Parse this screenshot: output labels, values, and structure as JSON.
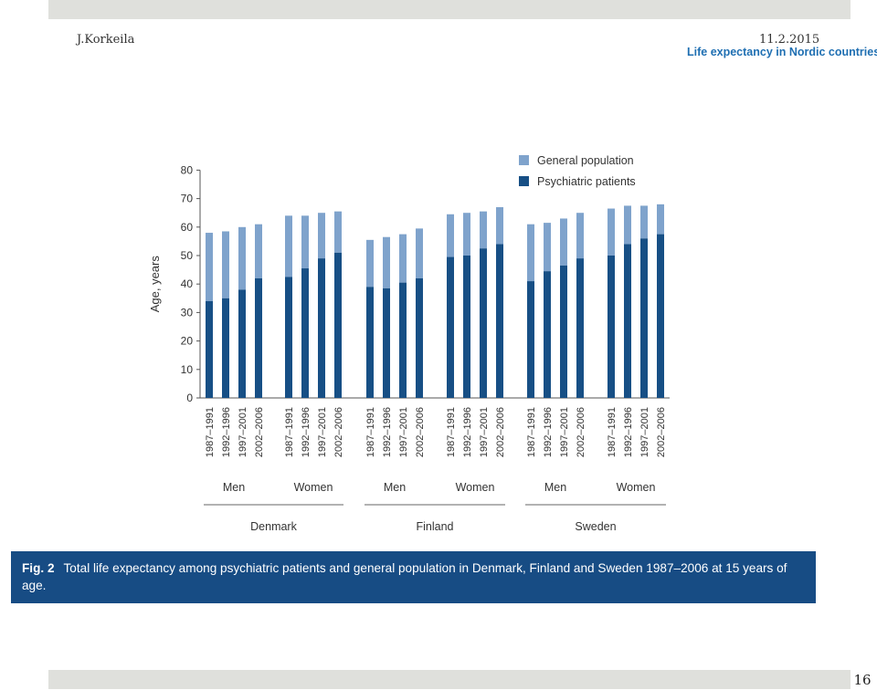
{
  "header": {
    "author": "J.Korkeila",
    "date": "11.2.2015",
    "subtitle": "Life expectancy in Nordic countries"
  },
  "caption": {
    "fig_label": "Fig. 2",
    "text": "Total life expectancy among psychiatric patients and general population in Denmark, Finland and Sweden 1987–2006 at 15 years of age."
  },
  "footer": {
    "page_number": "16"
  },
  "colors": {
    "general": "#7fa3cc",
    "psychiatric": "#174f85",
    "caption_bg": "#174c84"
  },
  "chart_data": {
    "type": "bar",
    "title": "",
    "ylabel": "Age, years",
    "ylim": [
      0,
      80
    ],
    "yticks": [
      0,
      10,
      20,
      30,
      40,
      50,
      60,
      70,
      80
    ],
    "legend": {
      "position": "top-right",
      "items": [
        "General population",
        "Psychiatric patients"
      ]
    },
    "groups": [
      {
        "country": "Denmark",
        "subgroups": [
          {
            "sex": "Men",
            "periods": [
              "1987–1991",
              "1992–1996",
              "1997–2001",
              "2002–2006"
            ],
            "general": [
              58,
              58.5,
              60,
              61
            ],
            "psychiatric": [
              34,
              35,
              38,
              42
            ]
          },
          {
            "sex": "Women",
            "periods": [
              "1987–1991",
              "1992–1996",
              "1997–2001",
              "2002–2006"
            ],
            "general": [
              64,
              64,
              65,
              65.5
            ],
            "psychiatric": [
              42.5,
              45.5,
              49,
              51
            ]
          }
        ]
      },
      {
        "country": "Finland",
        "subgroups": [
          {
            "sex": "Men",
            "periods": [
              "1987–1991",
              "1992–1996",
              "1997–2001",
              "2002–2006"
            ],
            "general": [
              55.5,
              56.5,
              57.5,
              59.5
            ],
            "psychiatric": [
              39,
              38.5,
              40.5,
              42
            ]
          },
          {
            "sex": "Women",
            "periods": [
              "1987–1991",
              "1992–1996",
              "1997–2001",
              "2002–2006"
            ],
            "general": [
              64.5,
              65,
              65.5,
              67
            ],
            "psychiatric": [
              49.5,
              50,
              52.5,
              54
            ]
          }
        ]
      },
      {
        "country": "Sweden",
        "subgroups": [
          {
            "sex": "Men",
            "periods": [
              "1987–1991",
              "1992–1996",
              "1997–2001",
              "2002–2006"
            ],
            "general": [
              61,
              61.5,
              63,
              65
            ],
            "psychiatric": [
              41,
              44.5,
              46.5,
              49
            ]
          },
          {
            "sex": "Women",
            "periods": [
              "1987–1991",
              "1992–1996",
              "1997–2001",
              "2002–2006"
            ],
            "general": [
              66.5,
              67.5,
              67.5,
              68
            ],
            "psychiatric": [
              50,
              54,
              56,
              57.5
            ]
          }
        ]
      }
    ]
  }
}
